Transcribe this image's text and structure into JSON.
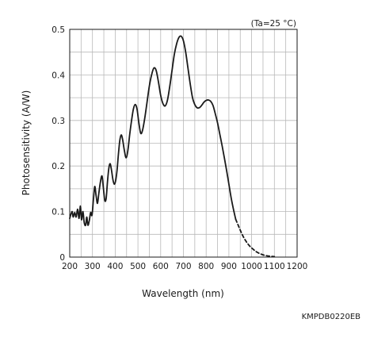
{
  "chart_data": {
    "type": "line",
    "condition": "(Ta=25 °C)",
    "xlabel": "Wavelength (nm)",
    "ylabel": "Photosensitivity (A/W)",
    "xlim": [
      200,
      1200
    ],
    "ylim": [
      0,
      0.5
    ],
    "xticks": [
      200,
      300,
      400,
      500,
      600,
      700,
      800,
      900,
      1000,
      1100,
      1200
    ],
    "yticks": [
      0,
      0.1,
      0.2,
      0.3,
      0.4,
      0.5
    ],
    "x_minor_step": 50,
    "grid": true,
    "series": [
      {
        "style": "solid",
        "points": [
          [
            200,
            0.085
          ],
          [
            210,
            0.1
          ],
          [
            215,
            0.088
          ],
          [
            222,
            0.098
          ],
          [
            228,
            0.088
          ],
          [
            235,
            0.105
          ],
          [
            241,
            0.085
          ],
          [
            247,
            0.112
          ],
          [
            252,
            0.082
          ],
          [
            258,
            0.1
          ],
          [
            264,
            0.075
          ],
          [
            270,
            0.07
          ],
          [
            275,
            0.088
          ],
          [
            280,
            0.07
          ],
          [
            286,
            0.08
          ],
          [
            292,
            0.098
          ],
          [
            298,
            0.092
          ],
          [
            304,
            0.125
          ],
          [
            310,
            0.155
          ],
          [
            316,
            0.135
          ],
          [
            322,
            0.118
          ],
          [
            328,
            0.14
          ],
          [
            335,
            0.165
          ],
          [
            342,
            0.178
          ],
          [
            348,
            0.152
          ],
          [
            354,
            0.125
          ],
          [
            360,
            0.128
          ],
          [
            366,
            0.165
          ],
          [
            372,
            0.195
          ],
          [
            378,
            0.205
          ],
          [
            384,
            0.19
          ],
          [
            390,
            0.17
          ],
          [
            396,
            0.16
          ],
          [
            402,
            0.168
          ],
          [
            408,
            0.19
          ],
          [
            414,
            0.225
          ],
          [
            420,
            0.255
          ],
          [
            426,
            0.268
          ],
          [
            432,
            0.26
          ],
          [
            440,
            0.235
          ],
          [
            448,
            0.218
          ],
          [
            456,
            0.235
          ],
          [
            464,
            0.27
          ],
          [
            472,
            0.3
          ],
          [
            480,
            0.325
          ],
          [
            488,
            0.335
          ],
          [
            496,
            0.325
          ],
          [
            504,
            0.295
          ],
          [
            512,
            0.272
          ],
          [
            520,
            0.278
          ],
          [
            530,
            0.305
          ],
          [
            540,
            0.34
          ],
          [
            550,
            0.375
          ],
          [
            560,
            0.4
          ],
          [
            570,
            0.415
          ],
          [
            580,
            0.41
          ],
          [
            590,
            0.385
          ],
          [
            600,
            0.355
          ],
          [
            610,
            0.337
          ],
          [
            620,
            0.332
          ],
          [
            630,
            0.345
          ],
          [
            640,
            0.375
          ],
          [
            650,
            0.41
          ],
          [
            660,
            0.445
          ],
          [
            670,
            0.468
          ],
          [
            680,
            0.482
          ],
          [
            690,
            0.485
          ],
          [
            700,
            0.475
          ],
          [
            710,
            0.45
          ],
          [
            720,
            0.415
          ],
          [
            730,
            0.38
          ],
          [
            740,
            0.35
          ],
          [
            750,
            0.335
          ],
          [
            760,
            0.328
          ],
          [
            770,
            0.328
          ],
          [
            780,
            0.333
          ],
          [
            790,
            0.34
          ],
          [
            800,
            0.344
          ],
          [
            810,
            0.345
          ],
          [
            820,
            0.342
          ],
          [
            830,
            0.333
          ],
          [
            840,
            0.315
          ],
          [
            850,
            0.295
          ],
          [
            860,
            0.27
          ],
          [
            870,
            0.245
          ],
          [
            880,
            0.218
          ],
          [
            890,
            0.19
          ],
          [
            900,
            0.16
          ],
          [
            910,
            0.13
          ],
          [
            920,
            0.105
          ],
          [
            930,
            0.083
          ]
        ]
      },
      {
        "style": "dashed",
        "points": [
          [
            930,
            0.083
          ],
          [
            945,
            0.065
          ],
          [
            960,
            0.048
          ],
          [
            975,
            0.035
          ],
          [
            990,
            0.025
          ],
          [
            1005,
            0.018
          ],
          [
            1020,
            0.012
          ],
          [
            1035,
            0.008
          ],
          [
            1050,
            0.005
          ],
          [
            1065,
            0.003
          ],
          [
            1080,
            0.002
          ],
          [
            1100,
            0.001
          ]
        ]
      }
    ]
  },
  "footer": {
    "code": "KMPDB0220EB"
  }
}
